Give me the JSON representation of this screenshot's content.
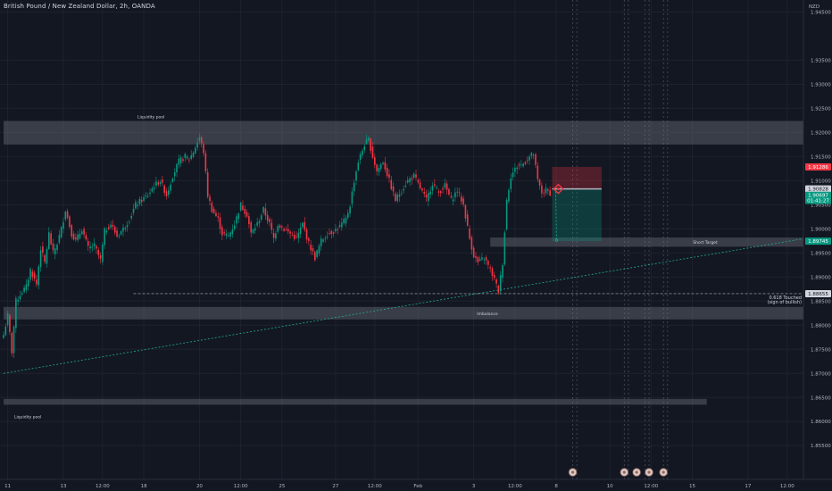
{
  "header": {
    "title": "British Pound / New Zealand Dollar, 2h, OANDA"
  },
  "axis": {
    "currency": "NZD"
  },
  "colors": {
    "background": "#131722",
    "up": "#089981",
    "down": "#f23645",
    "zone": "#787b86",
    "grid": "#1e222d"
  },
  "chart_data": {
    "type": "candlestick",
    "title": "British Pound / New Zealand Dollar, 2h, OANDA",
    "ylim": [
      1.848,
      1.9475
    ],
    "y_ticks": [
      "1.94500",
      "1.93500",
      "1.93000",
      "1.92500",
      "1.92000",
      "1.91500",
      "1.91000",
      "1.90500",
      "1.90000",
      "1.89500",
      "1.89000",
      "1.88500",
      "1.88000",
      "1.87500",
      "1.87000",
      "1.86500",
      "1.86000",
      "1.85500"
    ],
    "y_tick_values": [
      1.945,
      1.935,
      1.93,
      1.925,
      1.92,
      1.915,
      1.91,
      1.905,
      1.9,
      1.895,
      1.89,
      1.885,
      1.88,
      1.875,
      1.87,
      1.865,
      1.86,
      1.855
    ],
    "x_ticks": [
      {
        "label": "11",
        "bar": 2
      },
      {
        "label": "13",
        "bar": 29
      },
      {
        "label": "12:00",
        "bar": 48
      },
      {
        "label": "18",
        "bar": 68
      },
      {
        "label": "20",
        "bar": 95
      },
      {
        "label": "12:00",
        "bar": 115
      },
      {
        "label": "25",
        "bar": 135
      },
      {
        "label": "27",
        "bar": 161
      },
      {
        "label": "12:00",
        "bar": 180
      },
      {
        "label": "Feb",
        "bar": 201
      },
      {
        "label": "3",
        "bar": 228
      },
      {
        "label": "12:00",
        "bar": 248
      },
      {
        "label": "8",
        "bar": 268
      },
      {
        "label": "10",
        "bar": 294
      },
      {
        "label": "12:00",
        "bar": 314
      },
      {
        "label": "15",
        "bar": 334
      },
      {
        "label": "17",
        "bar": 361
      },
      {
        "label": "12:00",
        "bar": 380
      }
    ],
    "anchors": [
      [
        0,
        1.878
      ],
      [
        2,
        1.882
      ],
      [
        4,
        1.8745
      ],
      [
        6,
        1.885
      ],
      [
        9,
        1.887
      ],
      [
        11,
        1.888
      ],
      [
        13,
        1.8915
      ],
      [
        16,
        1.8885
      ],
      [
        18,
        1.896
      ],
      [
        20,
        1.893
      ],
      [
        22,
        1.899
      ],
      [
        24,
        1.895
      ],
      [
        26,
        1.897
      ],
      [
        28,
        1.9
      ],
      [
        30,
        1.904
      ],
      [
        33,
        1.899
      ],
      [
        35,
        1.8975
      ],
      [
        38,
        1.9
      ],
      [
        41,
        1.896
      ],
      [
        44,
        1.8965
      ],
      [
        47,
        1.8935
      ],
      [
        49,
        1.8995
      ],
      [
        52,
        1.901
      ],
      [
        55,
        1.8985
      ],
      [
        58,
        1.9
      ],
      [
        61,
        1.902
      ],
      [
        64,
        1.905
      ],
      [
        67,
        1.906
      ],
      [
        70,
        1.907
      ],
      [
        73,
        1.909
      ],
      [
        76,
        1.91
      ],
      [
        79,
        1.907
      ],
      [
        82,
        1.911
      ],
      [
        85,
        1.914
      ],
      [
        88,
        1.915
      ],
      [
        90,
        1.9145
      ],
      [
        92,
        1.916
      ],
      [
        95,
        1.919
      ],
      [
        97,
        1.916
      ],
      [
        99,
        1.907
      ],
      [
        101,
        1.904
      ],
      [
        104,
        1.902
      ],
      [
        106,
        1.899
      ],
      [
        109,
        1.8985
      ],
      [
        112,
        1.901
      ],
      [
        115,
        1.905
      ],
      [
        118,
        1.903
      ],
      [
        120,
        1.899
      ],
      [
        123,
        1.901
      ],
      [
        126,
        1.904
      ],
      [
        129,
        1.901
      ],
      [
        131,
        1.898
      ],
      [
        133,
        1.901
      ],
      [
        136,
        1.9
      ],
      [
        139,
        1.899
      ],
      [
        142,
        1.898
      ],
      [
        145,
        1.901
      ],
      [
        148,
        1.897
      ],
      [
        151,
        1.894
      ],
      [
        154,
        1.8975
      ],
      [
        157,
        1.899
      ],
      [
        160,
        1.8995
      ],
      [
        163,
        1.9005
      ],
      [
        166,
        1.902
      ],
      [
        168,
        1.905
      ],
      [
        170,
        1.91
      ],
      [
        172,
        1.914
      ],
      [
        175,
        1.9175
      ],
      [
        177,
        1.9185
      ],
      [
        179,
        1.915
      ],
      [
        181,
        1.912
      ],
      [
        184,
        1.914
      ],
      [
        187,
        1.91
      ],
      [
        190,
        1.906
      ],
      [
        193,
        1.908
      ],
      [
        196,
        1.91
      ],
      [
        199,
        1.911
      ],
      [
        202,
        1.9085
      ],
      [
        205,
        1.906
      ],
      [
        208,
        1.9095
      ],
      [
        211,
        1.9075
      ],
      [
        214,
        1.909
      ],
      [
        217,
        1.906
      ],
      [
        220,
        1.908
      ],
      [
        223,
        1.905
      ],
      [
        226,
        1.898
      ],
      [
        228,
        1.8945
      ],
      [
        230,
        1.893
      ],
      [
        233,
        1.894
      ],
      [
        236,
        1.8915
      ],
      [
        238,
        1.8895
      ],
      [
        240,
        1.887
      ],
      [
        242,
        1.893
      ],
      [
        244,
        1.906
      ],
      [
        246,
        1.911
      ],
      [
        249,
        1.913
      ],
      [
        252,
        1.9135
      ],
      [
        255,
        1.915
      ],
      [
        257,
        1.9155
      ],
      [
        259,
        1.91
      ],
      [
        261,
        1.9075
      ],
      [
        263,
        1.908
      ],
      [
        265,
        1.9075
      ]
    ],
    "last_bar": 265,
    "zones": [
      {
        "label": "Liquidity pool",
        "label_at": "top-left",
        "y1": 1.9224,
        "y2": 1.9175,
        "x_from": 0,
        "x_to": "end"
      },
      {
        "label": "Short Target",
        "label_at": "inside-right",
        "y1": 1.8982,
        "y2": 1.8963,
        "x_from": 236,
        "x_to": "end"
      },
      {
        "label": "Imbalance",
        "label_at": "inside",
        "y1": 1.8838,
        "y2": 1.8812,
        "x_from": 0,
        "x_to": "end"
      },
      {
        "label": "Liquidity pool",
        "label_at": "bottom-left",
        "y1": 1.8647,
        "y2": 1.8635,
        "x_from": 0,
        "x_to": 341
      }
    ],
    "position": {
      "type": "short",
      "entry": 1.90828,
      "stop": 1.91286,
      "target": 1.89745,
      "x_from": 266,
      "x_to": 290
    },
    "horizontal_line": {
      "price": 1.88655,
      "x_from": 63,
      "label": "0.618 Touched",
      "sublabel": "(sign of bullish)"
    },
    "trendline": {
      "from": [
        0,
        1.87
      ],
      "to": [
        390,
        1.8981
      ]
    },
    "vertical_lines": [
      276,
      278,
      301,
      303,
      311,
      313,
      320,
      322
    ],
    "price_labels": [
      {
        "text": "1.91286",
        "price": 1.91286,
        "style": "red"
      },
      {
        "text": "1.90828",
        "price": 1.90828,
        "style": "white"
      },
      {
        "text": "1.90697",
        "price": 1.90697,
        "style": "green"
      },
      {
        "text": "01:41:27",
        "price": 1.9059,
        "style": "green"
      },
      {
        "text": "1.89745",
        "price": 1.89745,
        "style": "green"
      },
      {
        "text": "1.88655",
        "price": 1.88655,
        "style": "white"
      }
    ],
    "event_markers": [
      {
        "bar": 276,
        "icon": "calendar-event-icon"
      },
      {
        "bar": 301,
        "icon": "calendar-event-icon"
      },
      {
        "bar": 307,
        "icon": "calendar-event-icon"
      },
      {
        "bar": 313,
        "icon": "calendar-event-icon"
      },
      {
        "bar": 320,
        "icon": "calendar-event-icon"
      }
    ]
  }
}
